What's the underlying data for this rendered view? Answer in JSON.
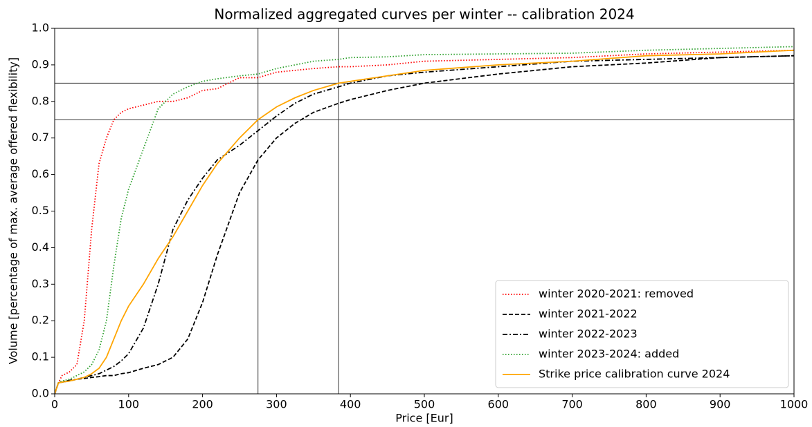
{
  "chart_data": {
    "type": "line",
    "title": "Normalized aggregated curves per winter -- calibration 2024",
    "xlabel": "Price [Eur]",
    "ylabel": "Volume [percentage of max. average offered flexibility]",
    "x": [
      0,
      5,
      10,
      20,
      30,
      40,
      50,
      60,
      70,
      80,
      90,
      100,
      120,
      140,
      160,
      180,
      200,
      220,
      250,
      275,
      300,
      325,
      350,
      384,
      400,
      450,
      500,
      600,
      700,
      800,
      900,
      1000
    ],
    "series": [
      {
        "name": "winter 2020-2021: removed",
        "color": "#ff0000",
        "linestyle": "dotted",
        "values": [
          0,
          0.03,
          0.05,
          0.06,
          0.08,
          0.2,
          0.45,
          0.63,
          0.7,
          0.75,
          0.77,
          0.78,
          0.79,
          0.8,
          0.8,
          0.81,
          0.83,
          0.835,
          0.865,
          0.865,
          0.88,
          0.885,
          0.89,
          0.895,
          0.895,
          0.9,
          0.91,
          0.915,
          0.92,
          0.93,
          0.935,
          0.94
        ]
      },
      {
        "name": "winter 2021-2022",
        "color": "#000000",
        "linestyle": "dashed",
        "values": [
          0,
          0.03,
          0.032,
          0.035,
          0.04,
          0.042,
          0.045,
          0.047,
          0.05,
          0.05,
          0.055,
          0.058,
          0.07,
          0.08,
          0.1,
          0.15,
          0.25,
          0.38,
          0.55,
          0.64,
          0.7,
          0.74,
          0.77,
          0.795,
          0.805,
          0.83,
          0.85,
          0.875,
          0.895,
          0.905,
          0.92,
          0.925
        ]
      },
      {
        "name": "winter 2022-2023",
        "color": "#000000",
        "linestyle": "dashdot",
        "values": [
          0,
          0.03,
          0.033,
          0.037,
          0.04,
          0.045,
          0.05,
          0.055,
          0.065,
          0.075,
          0.09,
          0.11,
          0.18,
          0.3,
          0.45,
          0.53,
          0.59,
          0.64,
          0.68,
          0.72,
          0.76,
          0.795,
          0.82,
          0.84,
          0.85,
          0.87,
          0.88,
          0.895,
          0.91,
          0.915,
          0.92,
          0.925
        ]
      },
      {
        "name": "winter 2023-2024: added",
        "color": "#2ca02c",
        "linestyle": "dotted",
        "values": [
          0,
          0.03,
          0.035,
          0.04,
          0.05,
          0.06,
          0.08,
          0.12,
          0.2,
          0.35,
          0.48,
          0.56,
          0.67,
          0.78,
          0.82,
          0.84,
          0.855,
          0.862,
          0.87,
          0.875,
          0.89,
          0.9,
          0.91,
          0.915,
          0.92,
          0.922,
          0.928,
          0.93,
          0.932,
          0.94,
          0.945,
          0.95
        ]
      },
      {
        "name": "Strike price calibration curve 2024",
        "color": "#ffa500",
        "linestyle": "solid",
        "values": [
          0,
          0.03,
          0.032,
          0.035,
          0.04,
          0.045,
          0.055,
          0.07,
          0.1,
          0.15,
          0.2,
          0.24,
          0.3,
          0.37,
          0.43,
          0.5,
          0.57,
          0.63,
          0.7,
          0.75,
          0.785,
          0.81,
          0.83,
          0.85,
          0.855,
          0.87,
          0.885,
          0.9,
          0.91,
          0.925,
          0.93,
          0.94
        ]
      }
    ],
    "reference_lines": {
      "x": [
        275,
        384
      ],
      "y": [
        0.75,
        0.85
      ]
    },
    "xlim": [
      0,
      1000
    ],
    "ylim": [
      0,
      1
    ],
    "xticks": [
      0,
      100,
      200,
      300,
      400,
      500,
      600,
      700,
      800,
      900,
      1000
    ],
    "yticks": [
      {
        "value": 0,
        "label": "0.0"
      },
      0.1,
      0.2,
      0.3,
      0.4,
      0.5,
      0.6,
      0.7,
      0.8,
      0.9,
      {
        "value": 1,
        "label": "1.0"
      }
    ],
    "legend": "lower right"
  }
}
